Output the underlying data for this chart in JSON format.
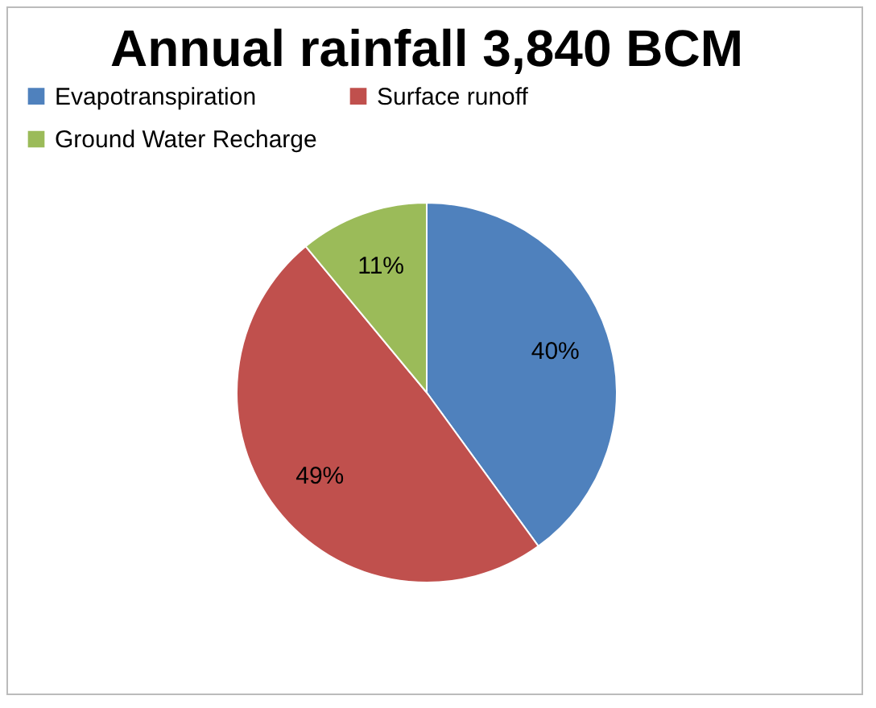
{
  "chart_data": {
    "type": "pie",
    "title": "Annual rainfall 3,840 BCM",
    "categories": [
      "Evapotranspiration",
      "Surface runoff",
      "Ground Water Recharge"
    ],
    "values": [
      40,
      49,
      11
    ],
    "colors": [
      "#4f81bd",
      "#c0504d",
      "#9bbb59"
    ],
    "value_labels": [
      "40%",
      "49%",
      "11%"
    ],
    "legend": "top"
  }
}
